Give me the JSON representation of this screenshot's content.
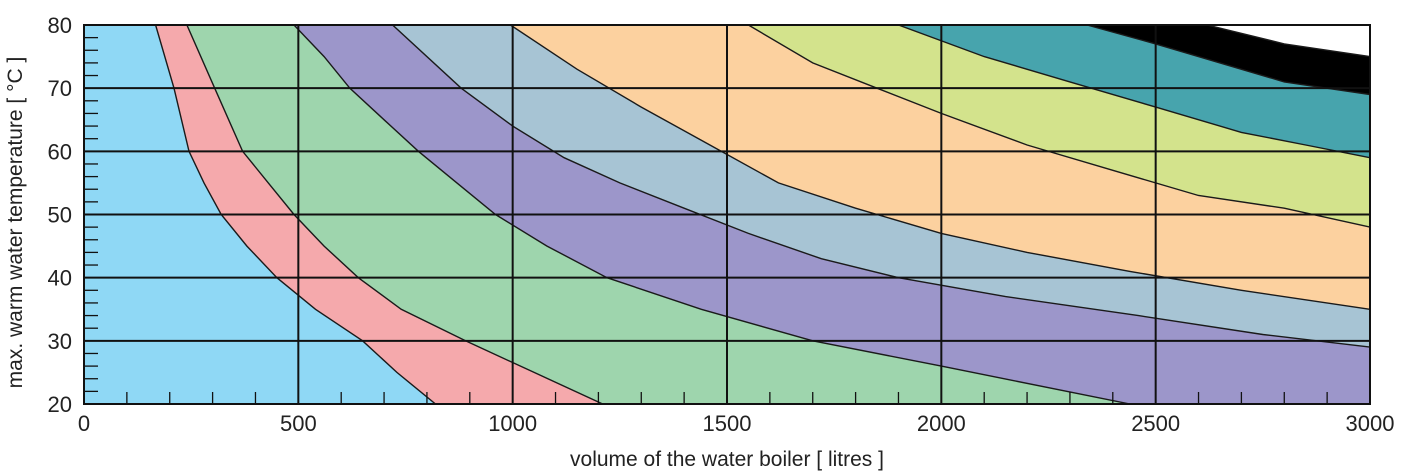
{
  "chart_data": {
    "type": "area",
    "title": "",
    "xlabel": "volume of the water boiler [ litres ]",
    "ylabel": "max. warm water temperature [ °C ]",
    "xlim": [
      0,
      3000
    ],
    "ylim": [
      20,
      80
    ],
    "x_ticks": [
      "0",
      "500",
      "1000",
      "1500",
      "2000",
      "2500",
      "3000"
    ],
    "y_ticks": [
      "20",
      "30",
      "40",
      "50",
      "60",
      "70",
      "80"
    ],
    "x_tick_values": [
      0,
      500,
      1000,
      1500,
      2000,
      2500,
      3000
    ],
    "y_tick_values": [
      20,
      30,
      40,
      50,
      60,
      70,
      80
    ],
    "x_minor_step": 100,
    "y_minor_step": 2,
    "grid": true,
    "background_color": "#ffffff",
    "band_colors": [
      "#8fd8f5",
      "#f5a9ac",
      "#9ed5ad",
      "#9c96ca",
      "#a7c4d4",
      "#fcd19f",
      "#d3e38c",
      "#47a4ad"
    ],
    "boundaries": [
      {
        "points": [
          [
            167,
            80
          ],
          [
            210,
            70
          ],
          [
            245,
            60
          ],
          [
            280,
            55
          ],
          [
            320,
            50
          ],
          [
            380,
            45
          ],
          [
            450,
            40
          ],
          [
            540,
            35
          ],
          [
            650,
            30
          ],
          [
            730,
            25
          ],
          [
            820,
            20
          ]
        ]
      },
      {
        "points": [
          [
            240,
            80
          ],
          [
            305,
            70
          ],
          [
            370,
            60
          ],
          [
            430,
            55
          ],
          [
            490,
            50
          ],
          [
            560,
            45
          ],
          [
            640,
            40
          ],
          [
            740,
            35
          ],
          [
            890,
            30
          ],
          [
            1050,
            25
          ],
          [
            1210,
            20
          ]
        ]
      },
      {
        "points": [
          [
            490,
            80
          ],
          [
            560,
            75
          ],
          [
            620,
            70
          ],
          [
            700,
            65
          ],
          [
            780,
            60
          ],
          [
            870,
            55
          ],
          [
            960,
            50
          ],
          [
            1080,
            45
          ],
          [
            1220,
            40
          ],
          [
            1440,
            35
          ],
          [
            1700,
            30
          ],
          [
            2000,
            26
          ],
          [
            2440,
            20
          ]
        ]
      },
      {
        "points": [
          [
            720,
            80
          ],
          [
            880,
            70
          ],
          [
            1000,
            64
          ],
          [
            1120,
            59
          ],
          [
            1250,
            55
          ],
          [
            1400,
            51
          ],
          [
            1550,
            47
          ],
          [
            1720,
            43
          ],
          [
            1900,
            40
          ],
          [
            2150,
            37
          ],
          [
            2460,
            34
          ],
          [
            2750,
            31
          ],
          [
            3000,
            29
          ]
        ]
      },
      {
        "points": [
          [
            995,
            80
          ],
          [
            1150,
            73
          ],
          [
            1300,
            67
          ],
          [
            1460,
            61
          ],
          [
            1620,
            55
          ],
          [
            1800,
            51
          ],
          [
            2000,
            47
          ],
          [
            2200,
            44
          ],
          [
            2440,
            41
          ],
          [
            2700,
            38
          ],
          [
            3000,
            35
          ]
        ]
      },
      {
        "points": [
          [
            1550,
            80
          ],
          [
            1700,
            74
          ],
          [
            1850,
            70
          ],
          [
            2000,
            66
          ],
          [
            2200,
            61
          ],
          [
            2400,
            57
          ],
          [
            2600,
            53
          ],
          [
            2800,
            51
          ],
          [
            3000,
            48
          ]
        ]
      },
      {
        "points": [
          [
            1900,
            80
          ],
          [
            2100,
            75
          ],
          [
            2300,
            71
          ],
          [
            2500,
            67
          ],
          [
            2700,
            63
          ],
          [
            2850,
            61
          ],
          [
            3000,
            59
          ]
        ]
      },
      {
        "points": [
          [
            2340,
            80
          ],
          [
            2500,
            77
          ],
          [
            2650,
            74
          ],
          [
            2800,
            71
          ],
          [
            3000,
            69
          ]
        ]
      }
    ]
  }
}
